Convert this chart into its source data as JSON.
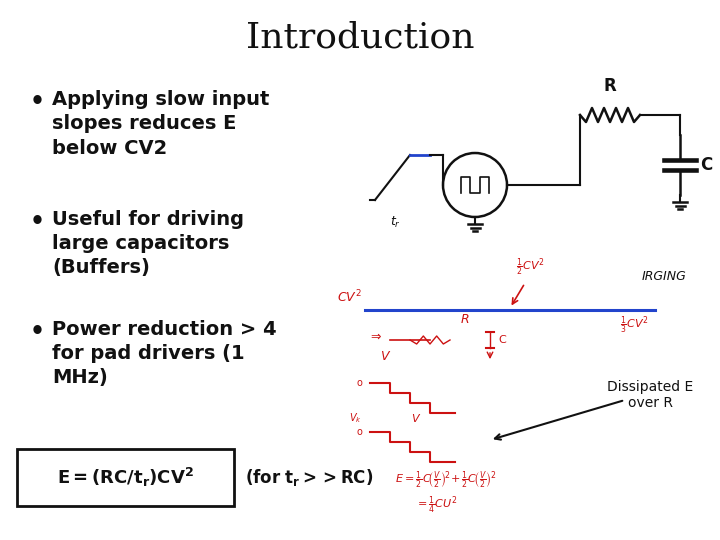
{
  "title": "Introduction",
  "title_fontsize": 26,
  "background_color": "#ffffff",
  "bullet_points": [
    "Applying slow input\nslopes reduces E\nbelow CV2",
    "Useful for driving\nlarge capacitors\n(Buffers)",
    "Power reduction > 4\nfor pad drivers (1\nMHz)"
  ],
  "bullet_fontsize": 14,
  "annotation_text": "Dissipated E\nover R",
  "annotation_fontsize": 10,
  "red_color": "#cc1111",
  "blue_color": "#2244cc",
  "black_color": "#111111"
}
